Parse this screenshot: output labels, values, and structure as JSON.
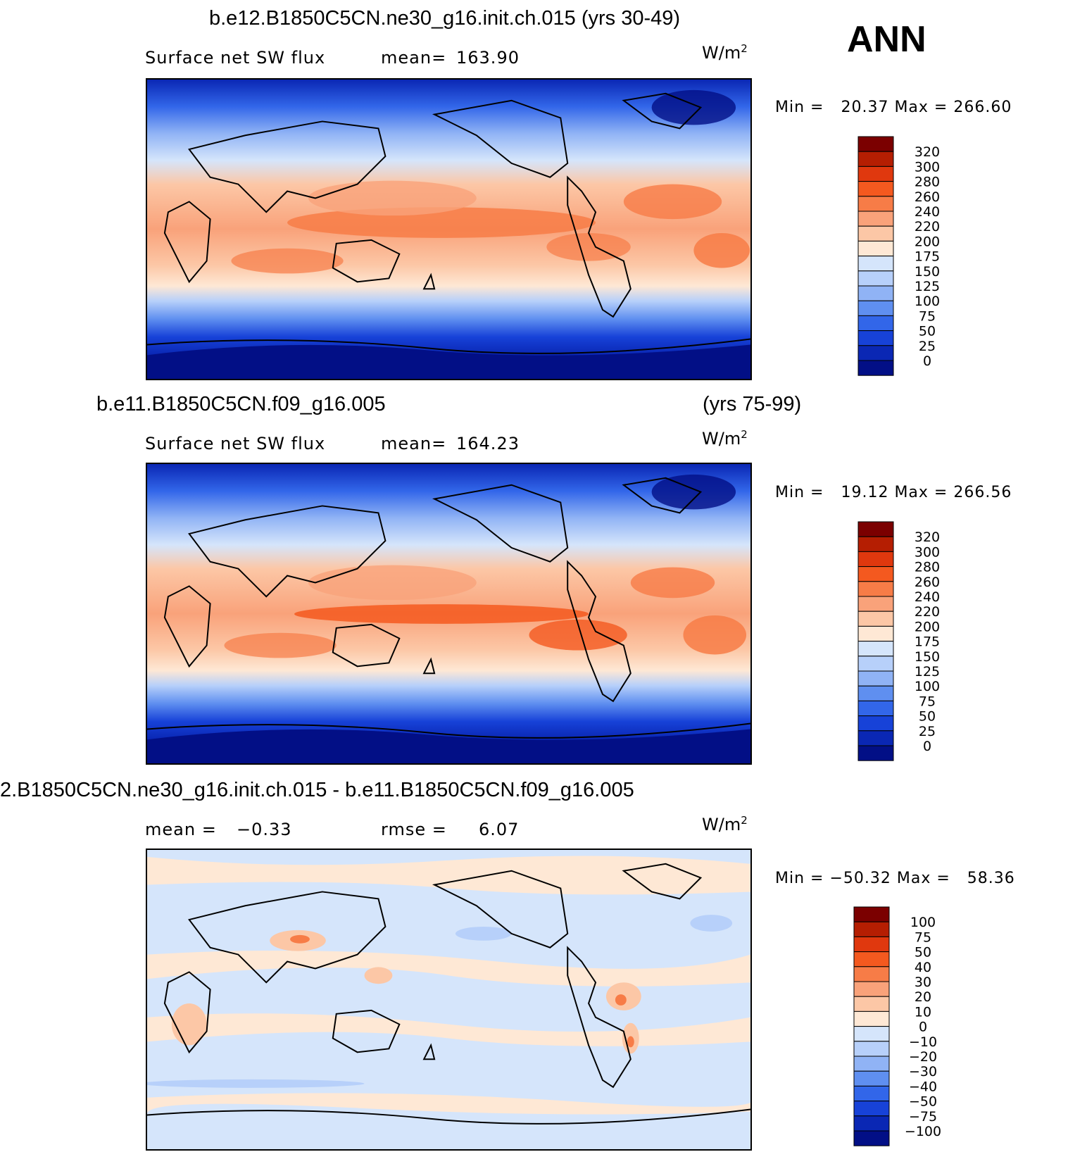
{
  "season": "ANN",
  "panels": [
    {
      "id": "test",
      "case_title": "b.e12.B1850C5CN.ne30_g16.init.ch.015 (yrs 30-49)",
      "case_title_years": "",
      "variable": "Surface net SW flux",
      "stat1_label": "mean=",
      "stat1_value": "163.90",
      "stat2_label": "",
      "stat2_value": "",
      "units": "W/m",
      "units_sup": "2",
      "min_label": "Min =",
      "min_value": "20.37",
      "max_label": "Max =",
      "max_value": "266.60",
      "colorbar": {
        "labels": [
          "320",
          "300",
          "280",
          "260",
          "240",
          "220",
          "200",
          "175",
          "150",
          "125",
          "100",
          "75",
          "50",
          "25",
          "0"
        ],
        "colors": [
          "#7b0000",
          "#b51e02",
          "#e0380e",
          "#f4591f",
          "#f77c47",
          "#f9a27a",
          "#fcc7a6",
          "#fee8d5",
          "#d5e5fb",
          "#b7d0fa",
          "#90b3f5",
          "#5f8ff0",
          "#3266e9",
          "#1742d8",
          "#0a27b4",
          "#020f86"
        ]
      }
    },
    {
      "id": "control",
      "case_title": "b.e11.B1850C5CN.f09_g16.005",
      "case_title_years": "(yrs 75-99)",
      "variable": "Surface net SW flux",
      "stat1_label": "mean=",
      "stat1_value": "164.23",
      "stat2_label": "",
      "stat2_value": "",
      "units": "W/m",
      "units_sup": "2",
      "min_label": "Min =",
      "min_value": "19.12",
      "max_label": "Max =",
      "max_value": "266.56",
      "colorbar": {
        "labels": [
          "320",
          "300",
          "280",
          "260",
          "240",
          "220",
          "200",
          "175",
          "150",
          "125",
          "100",
          "75",
          "50",
          "25",
          "0"
        ],
        "colors": [
          "#7b0000",
          "#b51e02",
          "#e0380e",
          "#f4591f",
          "#f77c47",
          "#f9a27a",
          "#fcc7a6",
          "#fee8d5",
          "#d5e5fb",
          "#b7d0fa",
          "#90b3f5",
          "#5f8ff0",
          "#3266e9",
          "#1742d8",
          "#0a27b4",
          "#020f86"
        ]
      }
    },
    {
      "id": "difference",
      "case_title": "2.B1850C5CN.ne30_g16.init.ch.015 - b.e11.B1850C5CN.f09_g16.005",
      "case_title_years": "",
      "variable": "",
      "stat1_label": "mean =",
      "stat1_value": "−0.33",
      "stat2_label": "rmse =",
      "stat2_value": "6.07",
      "units": "W/m",
      "units_sup": "2",
      "min_label": "Min =",
      "min_value": "−50.32",
      "max_label": "Max =",
      "max_value": "58.36",
      "colorbar": {
        "labels": [
          "100",
          "75",
          "50",
          "40",
          "30",
          "20",
          "10",
          "0",
          "−10",
          "−20",
          "−30",
          "−40",
          "−50",
          "−75",
          "−100"
        ],
        "colors": [
          "#7b0000",
          "#b51e02",
          "#e0380e",
          "#f4591f",
          "#f77c47",
          "#f9a27a",
          "#fcc7a6",
          "#fee8d5",
          "#d5e5fb",
          "#b7d0fa",
          "#90b3f5",
          "#5f8ff0",
          "#3266e9",
          "#1742d8",
          "#0a27b4",
          "#020f86"
        ]
      }
    }
  ]
}
